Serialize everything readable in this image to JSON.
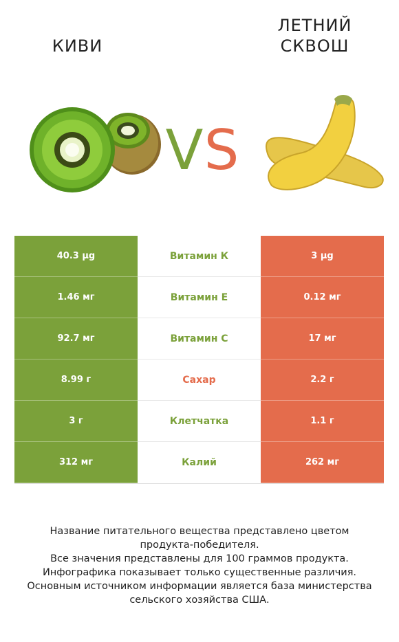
{
  "header": {
    "left_title": "КИВИ",
    "right_title_line1": "ЛЕТНИЙ",
    "right_title_line2": "СКВОШ",
    "vs_v": "V",
    "vs_s": "S"
  },
  "colors": {
    "winner_left": "#7ba13a",
    "winner_right": "#e46c4c"
  },
  "rows": [
    {
      "left": "40.3 µg",
      "label": "Витамин К",
      "right": "3 µg",
      "winner": "left"
    },
    {
      "left": "1.46 мг",
      "label": "Витамин Е",
      "right": "0.12 мг",
      "winner": "left"
    },
    {
      "left": "92.7 мг",
      "label": "Витамин C",
      "right": "17 мг",
      "winner": "left"
    },
    {
      "left": "8.99 г",
      "label": "Сахар",
      "right": "2.2 г",
      "winner": "right"
    },
    {
      "left": "3 г",
      "label": "Клетчатка",
      "right": "1.1 г",
      "winner": "left"
    },
    {
      "left": "312 мг",
      "label": "Калий",
      "right": "262 мг",
      "winner": "left"
    }
  ],
  "footer": {
    "line1": "Название питательного вещества представлено цветом",
    "line2": "продукта-победителя.",
    "line3": "Все значения представлены для 100 граммов продукта.",
    "line4": "Инфографика показывает только существенные различия.",
    "line5": "Основным источником информации является база министерства",
    "line6": "сельского хозяйства США."
  },
  "icons": {
    "left_image": "kiwi-illustration",
    "right_image": "yellow-squash-illustration"
  }
}
